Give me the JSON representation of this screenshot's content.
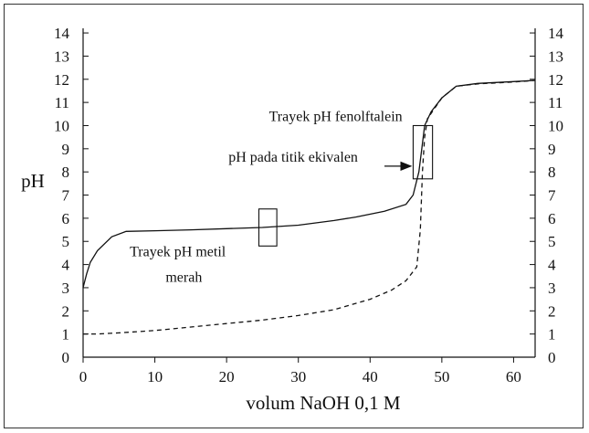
{
  "chart_data": {
    "type": "line",
    "title": "",
    "xlabel": "volum NaOH 0,1 M",
    "ylabel": "pH",
    "xlim": [
      0,
      63
    ],
    "ylim": [
      0,
      14.2
    ],
    "x_ticks": [
      "0",
      "10",
      "20",
      "30",
      "40",
      "50",
      "60"
    ],
    "y_ticks": [
      "0",
      "1",
      "2",
      "3",
      "4",
      "5",
      "6",
      "7",
      "8",
      "9",
      "10",
      "11",
      "12",
      "13",
      "14"
    ],
    "grid": false,
    "series": [
      {
        "style": "solid",
        "points": [
          [
            0,
            3.0
          ],
          [
            0.5,
            3.6
          ],
          [
            1,
            4.1
          ],
          [
            2,
            4.6
          ],
          [
            4,
            5.2
          ],
          [
            6,
            5.43
          ],
          [
            10,
            5.46
          ],
          [
            15,
            5.5
          ],
          [
            20,
            5.55
          ],
          [
            25,
            5.6
          ],
          [
            30,
            5.7
          ],
          [
            35,
            5.9
          ],
          [
            38,
            6.05
          ],
          [
            42,
            6.3
          ],
          [
            45,
            6.6
          ],
          [
            46,
            7.0
          ],
          [
            46.8,
            8.0
          ],
          [
            47.2,
            9.0
          ],
          [
            47.6,
            10.0
          ],
          [
            48.5,
            10.6
          ],
          [
            50,
            11.2
          ],
          [
            52,
            11.7
          ],
          [
            55,
            11.82
          ],
          [
            60,
            11.9
          ],
          [
            63,
            11.95
          ]
        ]
      },
      {
        "style": "dashed",
        "points": [
          [
            0,
            1.0
          ],
          [
            2,
            1.0
          ],
          [
            5,
            1.05
          ],
          [
            10,
            1.15
          ],
          [
            15,
            1.3
          ],
          [
            20,
            1.45
          ],
          [
            25,
            1.6
          ],
          [
            30,
            1.8
          ],
          [
            35,
            2.05
          ],
          [
            40,
            2.5
          ],
          [
            43,
            2.9
          ],
          [
            45,
            3.3
          ],
          [
            46.5,
            3.9
          ],
          [
            47,
            5.5
          ],
          [
            47.3,
            8.0
          ],
          [
            47.6,
            9.5
          ],
          [
            48,
            10.3
          ],
          [
            50,
            11.2
          ],
          [
            52,
            11.7
          ],
          [
            55,
            11.8
          ],
          [
            60,
            11.88
          ],
          [
            63,
            11.95
          ]
        ]
      }
    ],
    "boxes": [
      {
        "x": [
          24.5,
          27
        ],
        "y": [
          4.8,
          6.4
        ]
      },
      {
        "x": [
          46,
          48.7
        ],
        "y": [
          7.7,
          10.0
        ]
      }
    ],
    "annotations": [
      {
        "text": "Trayek pH fenolftalein",
        "x": 44.5,
        "y": 10.2
      },
      {
        "text": "pH pada titik ekivalen",
        "x": 38.3,
        "y": 8.45
      },
      {
        "text": "Trayek pH metil",
        "x": 6.5,
        "y": 4.35
      },
      {
        "text": "merah",
        "x": 11.5,
        "y": 3.25
      }
    ],
    "arrow": {
      "from": [
        42,
        8.25
      ],
      "to": [
        45.7,
        8.25
      ]
    }
  }
}
